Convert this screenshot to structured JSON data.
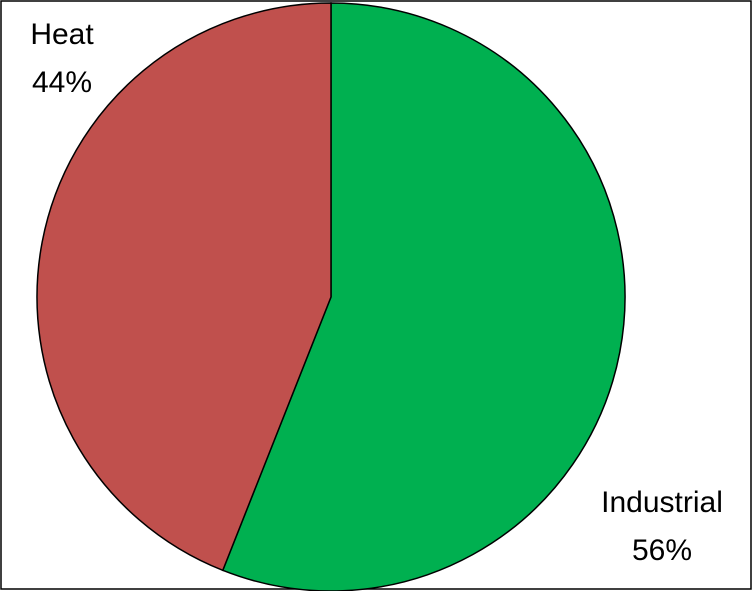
{
  "chart_data": {
    "type": "pie",
    "slices": [
      {
        "label": "Industrial",
        "percent_label": "56%",
        "value": 56,
        "color": "#00b050"
      },
      {
        "label": "Heat",
        "percent_label": "44%",
        "value": 44,
        "color": "#c0504d"
      }
    ],
    "start_angle_deg": 0,
    "direction": "clockwise",
    "outline_color": "#000000"
  }
}
